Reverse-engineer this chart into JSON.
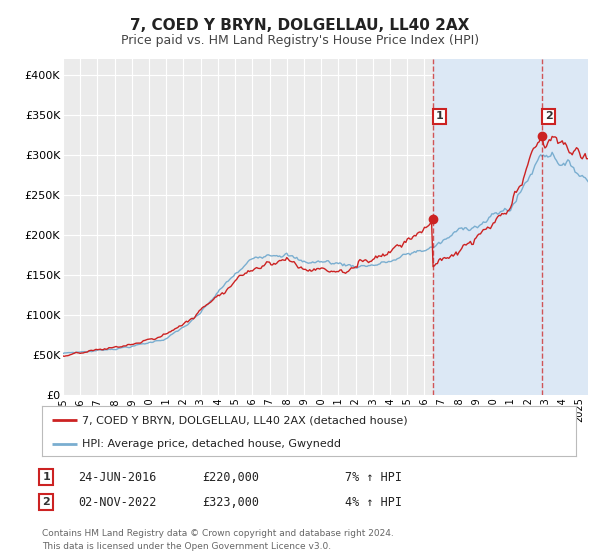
{
  "title": "7, COED Y BRYN, DOLGELLAU, LL40 2AX",
  "subtitle": "Price paid vs. HM Land Registry's House Price Index (HPI)",
  "ylim": [
    0,
    420000
  ],
  "yticks": [
    0,
    50000,
    100000,
    150000,
    200000,
    250000,
    300000,
    350000,
    400000
  ],
  "ytick_labels": [
    "£0",
    "£50K",
    "£100K",
    "£150K",
    "£200K",
    "£250K",
    "£300K",
    "£350K",
    "£400K"
  ],
  "xlim_start": 1995.0,
  "xlim_end": 2025.5,
  "xticks": [
    1995,
    1996,
    1997,
    1998,
    1999,
    2000,
    2001,
    2002,
    2003,
    2004,
    2005,
    2006,
    2007,
    2008,
    2009,
    2010,
    2011,
    2012,
    2013,
    2014,
    2015,
    2016,
    2017,
    2018,
    2019,
    2020,
    2021,
    2022,
    2023,
    2024,
    2025
  ],
  "background_color": "#ffffff",
  "plot_bg_color": "#ebebeb",
  "grid_color": "#ffffff",
  "shade_color": "#dce8f5",
  "legend_label_red": "7, COED Y BRYN, DOLGELLAU, LL40 2AX (detached house)",
  "legend_label_blue": "HPI: Average price, detached house, Gwynedd",
  "red_color": "#cc2222",
  "blue_color": "#7aaed0",
  "sale1_x": 2016.48,
  "sale1_y": 220000,
  "sale2_x": 2022.84,
  "sale2_y": 323000,
  "annotation1_date": "24-JUN-2016",
  "annotation1_price": "£220,000",
  "annotation1_hpi": "7% ↑ HPI",
  "annotation2_date": "02-NOV-2022",
  "annotation2_price": "£323,000",
  "annotation2_hpi": "4% ↑ HPI",
  "footer": "Contains HM Land Registry data © Crown copyright and database right 2024.\nThis data is licensed under the Open Government Licence v3.0.",
  "title_fontsize": 11,
  "subtitle_fontsize": 9
}
